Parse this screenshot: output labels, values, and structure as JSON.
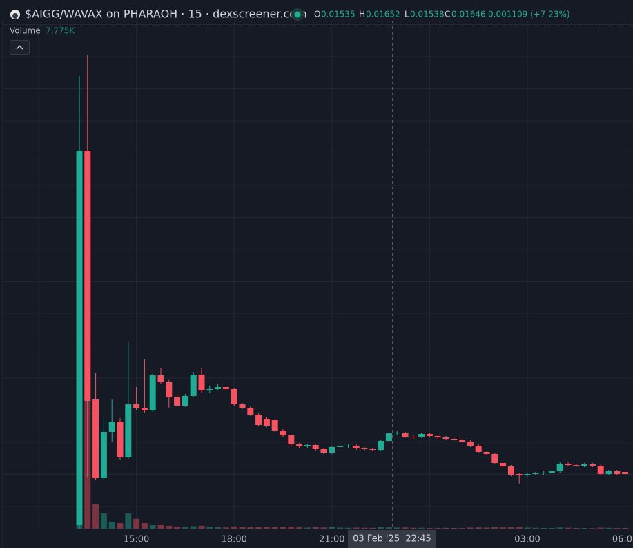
{
  "chart_data": {
    "type": "candlestick",
    "title": "$AIGG/WAVAX on PHARAOH · 15 · dexscreener.com",
    "ohlc_labels": [
      "O",
      "H",
      "L",
      "C"
    ],
    "change_label": "0.001109 (+7.23%)",
    "crosshair_label": "03 Feb '25  22:45",
    "up_color": "#22ab94",
    "down_color": "#f7525f",
    "ylim": [
      0.00266,
      0.07616
    ],
    "categories": [
      null,
      null,
      null,
      null,
      null,
      null,
      null,
      "15:00",
      null,
      null,
      null,
      null,
      null,
      null,
      null,
      null,
      null,
      null,
      null,
      "18:00",
      null,
      null,
      null,
      null,
      null,
      null,
      null,
      null,
      null,
      null,
      null,
      "21:00",
      null,
      null,
      null,
      null,
      null,
      null,
      null,
      null,
      null,
      null,
      null,
      null,
      null,
      null,
      null,
      null,
      null,
      null,
      null,
      null,
      null,
      null,
      null,
      "03:00",
      null,
      null,
      null,
      null,
      null,
      null,
      null,
      null,
      null,
      null,
      null,
      "06:00"
    ],
    "open": [
      0.00316,
      0.05736,
      0.02136,
      0.00996,
      0.01666,
      0.01816,
      0.01296,
      0.02066,
      0.02016,
      0.01976,
      0.02486,
      0.02386,
      0.02166,
      0.02046,
      0.02186,
      0.02496,
      0.02266,
      0.02286,
      0.02316,
      0.02286,
      0.02066,
      0.02016,
      0.01916,
      0.01856,
      0.01836,
      0.01686,
      0.01616,
      0.01486,
      0.01456,
      0.01476,
      0.01416,
      0.01366,
      0.01446,
      0.01456,
      0.01466,
      0.01426,
      0.01416,
      0.01406,
      0.01535,
      0.01646,
      0.01646,
      0.01596,
      0.01596,
      0.01636,
      0.01606,
      0.01586,
      0.01566,
      0.01556,
      0.01526,
      0.01466,
      0.01376,
      0.01346,
      0.01216,
      0.01166,
      0.01056,
      0.01036,
      0.01056,
      0.01066,
      0.01076,
      0.01096,
      0.01206,
      0.01186,
      0.01176,
      0.01196,
      0.01176,
      0.01056,
      0.01096,
      0.01086
    ],
    "high": [
      0.06816,
      0.07116,
      0.02516,
      0.01866,
      0.02136,
      0.01866,
      0.02966,
      0.02316,
      0.02716,
      0.02516,
      0.02596,
      0.02416,
      0.02216,
      0.02216,
      0.02536,
      0.02596,
      0.02336,
      0.02366,
      0.02336,
      0.02306,
      0.02086,
      0.02036,
      0.01936,
      0.01876,
      0.01856,
      0.01706,
      0.01636,
      0.01506,
      0.01496,
      0.01496,
      0.01436,
      0.01466,
      0.01476,
      0.01486,
      0.01486,
      0.01446,
      0.01436,
      0.01556,
      0.01652,
      0.01676,
      0.01666,
      0.01616,
      0.01656,
      0.01656,
      0.01626,
      0.01606,
      0.01586,
      0.01576,
      0.01546,
      0.01486,
      0.01396,
      0.01366,
      0.01236,
      0.01186,
      0.01076,
      0.01076,
      0.01086,
      0.01096,
      0.01116,
      0.01226,
      0.01226,
      0.01206,
      0.01216,
      0.01216,
      0.01196,
      0.01116,
      0.01116,
      0.01106
    ],
    "low": [
      0.00266,
      0.01016,
      0.00966,
      0.00976,
      0.01516,
      0.01266,
      0.01276,
      0.01986,
      0.01946,
      0.01956,
      0.02356,
      0.02016,
      0.02026,
      0.02026,
      0.02176,
      0.02236,
      0.02226,
      0.02266,
      0.02256,
      0.02046,
      0.01996,
      0.01896,
      0.01746,
      0.01736,
      0.01666,
      0.01596,
      0.01466,
      0.01436,
      0.01436,
      0.01396,
      0.01346,
      0.01346,
      0.01426,
      0.01436,
      0.01406,
      0.01396,
      0.01386,
      0.01386,
      0.01538,
      0.01626,
      0.01576,
      0.01566,
      0.01576,
      0.01586,
      0.01566,
      0.01546,
      0.01536,
      0.01506,
      0.01446,
      0.01356,
      0.01326,
      0.01196,
      0.01146,
      0.01026,
      0.00916,
      0.01016,
      0.01036,
      0.01046,
      0.01056,
      0.01076,
      0.01166,
      0.01156,
      0.01156,
      0.01156,
      0.01036,
      0.01036,
      0.01036,
      0.01036
    ],
    "close": [
      0.05736,
      0.02116,
      0.00996,
      0.01666,
      0.01816,
      0.01296,
      0.02066,
      0.02016,
      0.01976,
      0.02486,
      0.02386,
      0.02166,
      0.02046,
      0.02186,
      0.02496,
      0.02266,
      0.02286,
      0.02316,
      0.02286,
      0.02066,
      0.02016,
      0.01916,
      0.01766,
      0.01756,
      0.01686,
      0.01616,
      0.01486,
      0.01456,
      0.01476,
      0.01416,
      0.01366,
      0.01446,
      0.01456,
      0.01466,
      0.01426,
      0.01416,
      0.01406,
      0.01536,
      0.01646,
      0.01656,
      0.01596,
      0.01586,
      0.01636,
      0.01606,
      0.01586,
      0.01566,
      0.01556,
      0.01526,
      0.01466,
      0.01376,
      0.01346,
      0.01216,
      0.01166,
      0.01046,
      0.01036,
      0.01056,
      0.01066,
      0.01076,
      0.01096,
      0.01206,
      0.01186,
      0.01176,
      0.01196,
      0.01176,
      0.01056,
      0.01096,
      0.01056,
      0.01056
    ],
    "volume": {
      "name": "Volume",
      "vlim": [
        0,
        1000000
      ],
      "values": [
        242000,
        720000,
        137000,
        86000,
        39000,
        31000,
        86000,
        55000,
        31000,
        20000,
        23000,
        16000,
        12000,
        10000,
        14000,
        16000,
        9000,
        8000,
        7000,
        12000,
        10000,
        8000,
        9000,
        10000,
        9000,
        8000,
        12000,
        7000,
        6000,
        8000,
        7000,
        9000,
        6000,
        5000,
        6000,
        5000,
        5000,
        9000,
        7775,
        6000,
        7000,
        5000,
        5000,
        4000,
        4000,
        5000,
        4000,
        4000,
        6000,
        7000,
        6000,
        8000,
        7000,
        9000,
        10000,
        6000,
        5000,
        4000,
        4000,
        7000,
        5000,
        4000,
        4000,
        3000,
        6000,
        5000,
        4000,
        4000
      ],
      "value_labels": [
        null,
        null,
        null,
        null,
        null,
        null,
        null,
        null,
        null,
        null,
        null,
        null,
        null,
        null,
        null,
        null,
        null,
        null,
        null,
        null,
        null,
        null,
        null,
        null,
        null,
        null,
        null,
        null,
        null,
        null,
        null,
        null,
        null,
        null,
        null,
        null,
        null,
        null,
        "7.775K",
        null,
        null,
        null,
        null,
        null,
        null,
        null,
        null,
        null,
        null,
        null,
        null,
        null,
        null,
        null,
        null,
        null,
        null,
        null,
        null,
        null,
        null,
        null,
        null,
        null,
        null,
        null,
        null,
        null
      ]
    }
  }
}
